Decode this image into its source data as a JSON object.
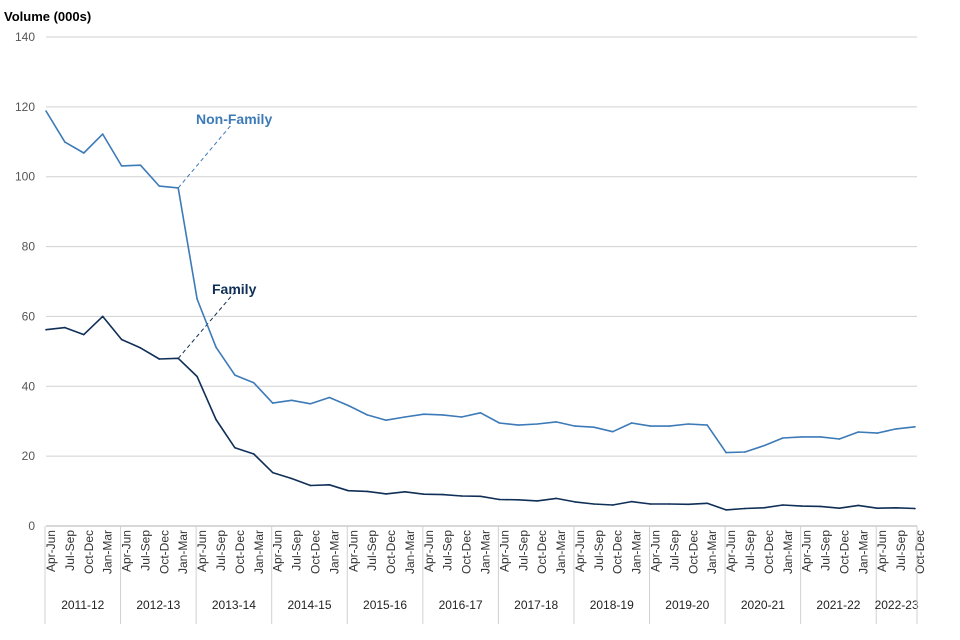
{
  "chart_data": {
    "type": "line",
    "title": "",
    "ylabel": "Volume (000s)",
    "xlabel": "",
    "ylim": [
      0,
      140
    ],
    "yticks": [
      0,
      20,
      40,
      60,
      80,
      100,
      120,
      140
    ],
    "grid": true,
    "legend": "inline labels",
    "quarters": [
      "Apr-Jun",
      "Jul-Sep",
      "Oct-Dec",
      "Jan-Mar"
    ],
    "years": [
      "2011-12",
      "2012-13",
      "2013-14",
      "2014-15",
      "2015-16",
      "2016-17",
      "2017-18",
      "2018-19",
      "2019-20",
      "2020-21",
      "2021-22",
      "2022-23"
    ],
    "series": [
      {
        "name": "Non-Family",
        "color": "#3d7ab8",
        "values": [
          118.8,
          109.9,
          106.8,
          112.2,
          103.1,
          103.3,
          97.3,
          96.8,
          65.0,
          51.2,
          43.2,
          41.0,
          35.2,
          36.0,
          35.0,
          36.8,
          34.5,
          31.8,
          30.3,
          31.2,
          32.0,
          31.8,
          31.2,
          32.4,
          29.5,
          28.9,
          29.2,
          29.8,
          28.6,
          28.3,
          27.0,
          29.5,
          28.6,
          28.6,
          29.2,
          28.9,
          21.0,
          21.2,
          23.0,
          25.2,
          25.5,
          25.5,
          24.9,
          26.9,
          26.6,
          27.8,
          28.4
        ]
      },
      {
        "name": "Family",
        "color": "#0f2f57",
        "values": [
          56.2,
          56.8,
          54.8,
          60.0,
          53.4,
          51.0,
          47.8,
          48.0,
          42.8,
          30.5,
          22.4,
          20.6,
          15.3,
          13.6,
          11.6,
          11.8,
          10.1,
          9.9,
          9.2,
          9.8,
          9.1,
          9.0,
          8.6,
          8.5,
          7.6,
          7.5,
          7.2,
          7.9,
          6.9,
          6.3,
          6.0,
          7.0,
          6.3,
          6.3,
          6.2,
          6.5,
          4.6,
          5.0,
          5.2,
          6.0,
          5.7,
          5.6,
          5.1,
          5.9,
          5.1,
          5.2,
          5.0
        ]
      }
    ]
  }
}
